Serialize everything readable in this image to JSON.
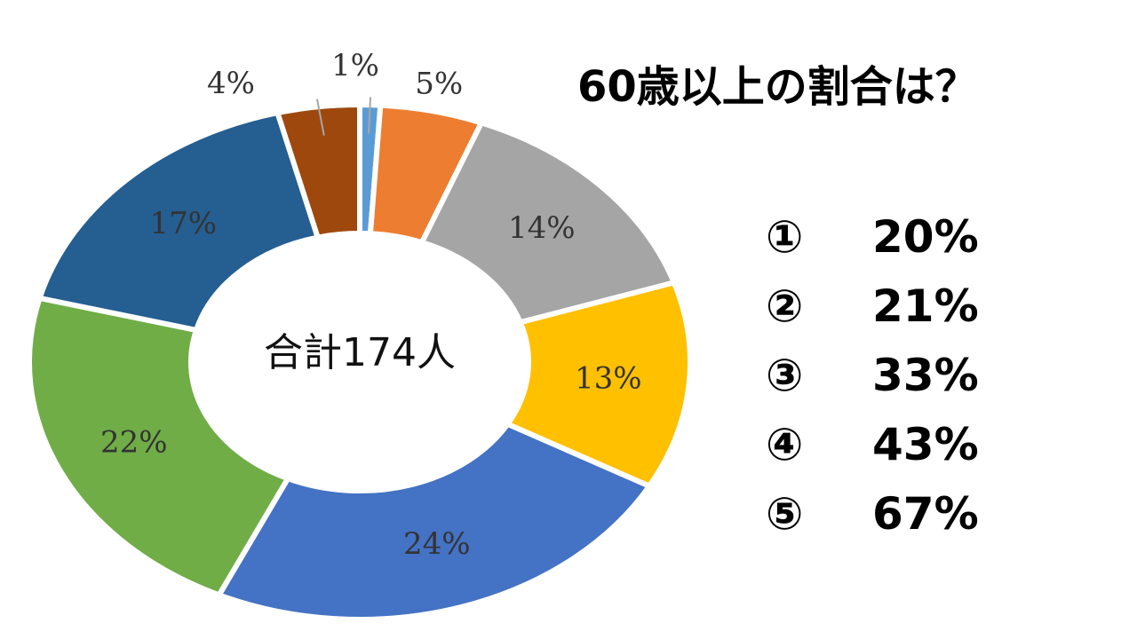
{
  "question": {
    "title": "60歳以上の割合は？",
    "choices": [
      {
        "number": "①",
        "text": "20%"
      },
      {
        "number": "②",
        "text": "21%"
      },
      {
        "number": "③",
        "text": "33%"
      },
      {
        "number": "④",
        "text": "43%"
      },
      {
        "number": "⑤",
        "text": "67%"
      }
    ]
  },
  "chart_data": {
    "type": "pie",
    "variant": "donut",
    "center_label": "合計174人",
    "slices": [
      {
        "label": "1%",
        "value": 1,
        "color": "#5B9BD5"
      },
      {
        "label": "5%",
        "value": 5,
        "color": "#ED7D31"
      },
      {
        "label": "14%",
        "value": 14,
        "color": "#A5A5A5"
      },
      {
        "label": "13%",
        "value": 13,
        "color": "#FFC000"
      },
      {
        "label": "24%",
        "value": 24,
        "color": "#4472C4"
      },
      {
        "label": "22%",
        "value": 22,
        "color": "#70AD47"
      },
      {
        "label": "17%",
        "value": 17,
        "color": "#255E91"
      },
      {
        "label": "4%",
        "value": 4,
        "color": "#9E480E"
      }
    ],
    "legend": "none"
  }
}
